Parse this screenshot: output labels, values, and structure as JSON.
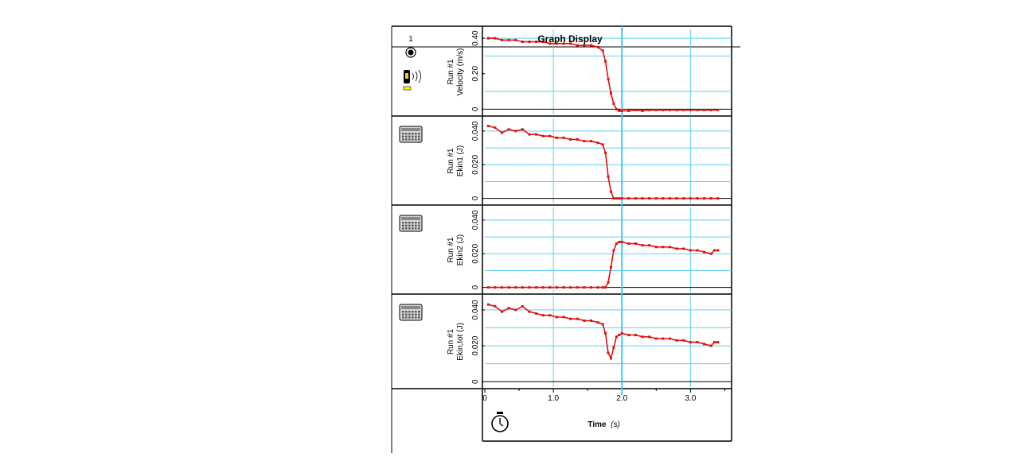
{
  "window": {
    "title": "Graph Display",
    "sensor_channel": "1"
  },
  "colors": {
    "data": "#e01010",
    "grid": "#5fd0f0",
    "cursor": "#40c8f0",
    "frame": "#000000"
  },
  "icons": [
    "motion-sensor-icon",
    "calculator-icon",
    "stopwatch-icon"
  ],
  "x_axis": {
    "label": "Time",
    "unit": "(s)",
    "ticks": [
      "0",
      "1.0",
      "2.0",
      "3.0"
    ],
    "cursor_x": 2.0
  },
  "chart_data": [
    {
      "type": "line",
      "title": "Graph Display",
      "ylabel_run": "Run #1",
      "ylabel": "Velocity (m/s)",
      "xlim": [
        0,
        3.6
      ],
      "ylim": [
        -0.03,
        0.45
      ],
      "yticks": [
        {
          "v": 0,
          "label": "0"
        },
        {
          "v": 0.2,
          "label": "0.20"
        },
        {
          "v": 0.4,
          "label": "0.40"
        }
      ],
      "ygrid": [
        0.1,
        0.3,
        0.4
      ],
      "xgrid": [
        1.0,
        2.0,
        3.0
      ],
      "series": [
        {
          "x": [
            0.05,
            0.15,
            0.25,
            0.35,
            0.45,
            0.55,
            0.65,
            0.75,
            0.85,
            0.95,
            1.05,
            1.15,
            1.25,
            1.35,
            1.45,
            1.55,
            1.65,
            1.72,
            1.76,
            1.8,
            1.84,
            1.88,
            1.92,
            1.96,
            2.0,
            2.1,
            2.2,
            2.3,
            2.4,
            2.5,
            2.6,
            2.7,
            2.8,
            2.9,
            3.0,
            3.1,
            3.2,
            3.3,
            3.4
          ],
          "y": [
            0.4,
            0.4,
            0.39,
            0.39,
            0.39,
            0.38,
            0.38,
            0.38,
            0.38,
            0.37,
            0.37,
            0.37,
            0.37,
            0.36,
            0.36,
            0.36,
            0.35,
            0.33,
            0.27,
            0.17,
            0.09,
            0.03,
            0.0,
            -0.01,
            -0.01,
            -0.01,
            -0.005,
            -0.01,
            -0.005,
            -0.005,
            -0.005,
            -0.005,
            -0.005,
            -0.005,
            -0.005,
            -0.005,
            -0.005,
            -0.005,
            -0.005
          ]
        }
      ]
    },
    {
      "type": "line",
      "ylabel_run": "Run #1",
      "ylabel": "Ekin1 (J)",
      "xlim": [
        0,
        3.6
      ],
      "ylim": [
        -0.003,
        0.0475
      ],
      "yticks": [
        {
          "v": 0,
          "label": "0"
        },
        {
          "v": 0.02,
          "label": "0.020"
        },
        {
          "v": 0.04,
          "label": "0.040"
        }
      ],
      "ygrid": [
        0.01,
        0.02,
        0.03,
        0.04
      ],
      "xgrid": [
        1.0,
        2.0,
        3.0
      ],
      "series": [
        {
          "x": [
            0.05,
            0.15,
            0.25,
            0.35,
            0.45,
            0.55,
            0.65,
            0.75,
            0.85,
            0.95,
            1.05,
            1.15,
            1.25,
            1.35,
            1.45,
            1.55,
            1.65,
            1.72,
            1.76,
            1.8,
            1.84,
            1.88,
            1.92,
            1.96,
            2.0,
            2.1,
            2.2,
            2.3,
            2.4,
            2.5,
            2.6,
            2.7,
            2.8,
            2.9,
            3.0,
            3.1,
            3.2,
            3.3,
            3.4
          ],
          "y": [
            0.043,
            0.042,
            0.039,
            0.041,
            0.04,
            0.041,
            0.038,
            0.038,
            0.037,
            0.037,
            0.036,
            0.036,
            0.035,
            0.035,
            0.034,
            0.034,
            0.033,
            0.032,
            0.027,
            0.013,
            0.004,
            0.0,
            0.0,
            0.0,
            0.0,
            0.0,
            0.0,
            0.0,
            0.0,
            0.0,
            0.0,
            0.0,
            0.0,
            0.0,
            0.0,
            0.0,
            0.0,
            0.0,
            0.0
          ]
        }
      ]
    },
    {
      "type": "line",
      "ylabel_run": "Run #1",
      "ylabel": "Ekin2 (J)",
      "xlim": [
        0,
        3.6
      ],
      "ylim": [
        -0.003,
        0.0475
      ],
      "yticks": [
        {
          "v": 0,
          "label": "0"
        },
        {
          "v": 0.02,
          "label": "0.020"
        },
        {
          "v": 0.04,
          "label": "0.040"
        }
      ],
      "ygrid": [
        0.01,
        0.02,
        0.03,
        0.04
      ],
      "xgrid": [
        1.0,
        2.0,
        3.0
      ],
      "series": [
        {
          "x": [
            0.05,
            0.15,
            0.25,
            0.35,
            0.45,
            0.55,
            0.65,
            0.75,
            0.85,
            0.95,
            1.05,
            1.15,
            1.25,
            1.35,
            1.45,
            1.55,
            1.65,
            1.72,
            1.76,
            1.8,
            1.84,
            1.88,
            1.92,
            1.96,
            2.0,
            2.1,
            2.2,
            2.3,
            2.4,
            2.5,
            2.6,
            2.7,
            2.8,
            2.9,
            3.0,
            3.1,
            3.2,
            3.3,
            3.35,
            3.4
          ],
          "y": [
            0.0,
            0.0,
            0.0,
            0.0,
            0.0,
            0.0,
            0.0,
            0.0,
            0.0,
            0.0,
            0.0,
            0.0,
            0.0,
            0.0,
            0.0,
            0.0,
            0.0,
            0.0,
            0.0,
            0.003,
            0.012,
            0.022,
            0.026,
            0.027,
            0.027,
            0.026,
            0.026,
            0.025,
            0.025,
            0.024,
            0.024,
            0.024,
            0.023,
            0.023,
            0.022,
            0.022,
            0.021,
            0.02,
            0.022,
            0.022
          ]
        }
      ]
    },
    {
      "type": "line",
      "ylabel_run": "Run #1",
      "ylabel": "Ekin,tot (J)",
      "xlim": [
        0,
        3.6
      ],
      "ylim": [
        -0.003,
        0.0475
      ],
      "yticks": [
        {
          "v": 0,
          "label": "0"
        },
        {
          "v": 0.02,
          "label": "0.020"
        },
        {
          "v": 0.04,
          "label": "0.040"
        }
      ],
      "ygrid": [
        0.01,
        0.02,
        0.03,
        0.04
      ],
      "xgrid": [
        1.0,
        2.0,
        3.0
      ],
      "series": [
        {
          "x": [
            0.05,
            0.15,
            0.25,
            0.35,
            0.45,
            0.55,
            0.65,
            0.75,
            0.85,
            0.95,
            1.05,
            1.15,
            1.25,
            1.35,
            1.45,
            1.55,
            1.65,
            1.72,
            1.76,
            1.8,
            1.84,
            1.88,
            1.92,
            1.96,
            2.0,
            2.1,
            2.2,
            2.3,
            2.4,
            2.5,
            2.6,
            2.7,
            2.8,
            2.9,
            3.0,
            3.1,
            3.2,
            3.3,
            3.35,
            3.4
          ],
          "y": [
            0.043,
            0.042,
            0.039,
            0.041,
            0.04,
            0.042,
            0.039,
            0.038,
            0.037,
            0.037,
            0.036,
            0.036,
            0.035,
            0.035,
            0.034,
            0.034,
            0.033,
            0.032,
            0.027,
            0.016,
            0.013,
            0.019,
            0.025,
            0.026,
            0.027,
            0.026,
            0.026,
            0.025,
            0.025,
            0.024,
            0.024,
            0.024,
            0.023,
            0.023,
            0.022,
            0.022,
            0.021,
            0.02,
            0.022,
            0.022
          ]
        }
      ]
    }
  ]
}
